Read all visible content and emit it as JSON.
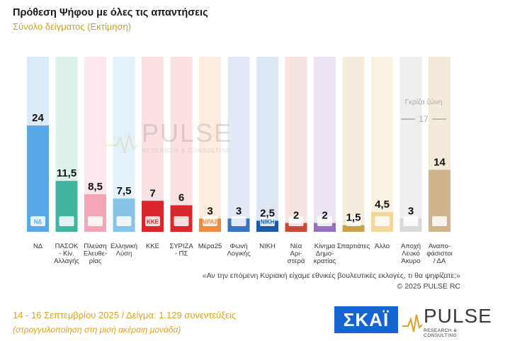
{
  "header": {
    "title": "Πρόθεση Ψήφου με όλες τις απαντήσεις",
    "subtitle": "Σύνολο δείγματος   (Εκτίμηση)"
  },
  "watermark": {
    "brand": "PULSE",
    "tagline": "RESEARCH & CONSULTING"
  },
  "gray_zone": {
    "label": "Γκρίζα ζώνη",
    "value": "17"
  },
  "chart_data": {
    "type": "bar",
    "title": "Πρόθεση Ψήφου με όλες τις απαντήσεις",
    "subtitle": "Σύνολο δείγματος   (Εκτίμηση)",
    "categories": [
      "ΝΔ",
      "ΠΑΣΟΚ - Κίν. Αλλαγής",
      "Πλεύση Ελευθερίας",
      "Ελληνική Λύση",
      "ΚΚΕ",
      "ΣΥΡΙΖΑ - ΠΣ",
      "Μέρα25",
      "Φωνή Λογικής",
      "ΝΙΚΗ",
      "Νέα Αριστερά",
      "Κίνημα Δημοκρατίας",
      "Σπαρτιάτες",
      "Άλλο",
      "Αποχή Λευκό Άκυρο",
      "Αναποφάσιστοι / ΔΑ"
    ],
    "category_lines": [
      [
        "ΝΔ"
      ],
      [
        "ΠΑΣΟΚ",
        "- Κίν.",
        "Αλλαγής"
      ],
      [
        "Πλεύση",
        "Ελευθε-",
        "ρίας"
      ],
      [
        "Ελληνική",
        "Λύση"
      ],
      [
        "ΚΚΕ"
      ],
      [
        "ΣΥΡΙΖΑ",
        "- ΠΣ"
      ],
      [
        "Μέρα25"
      ],
      [
        "Φωνή",
        "Λογικής"
      ],
      [
        "ΝΙΚΗ"
      ],
      [
        "Νέα",
        "Αρι-",
        "στερά"
      ],
      [
        "Κίνημα",
        "Δημο-",
        "κρατίας"
      ],
      [
        "Σπαρτιάτες"
      ],
      [
        "Άλλο"
      ],
      [
        "Αποχή",
        "Λευκό",
        "Άκυρο"
      ],
      [
        "Αναπο-",
        "φάσιστοι",
        "/ ΔΑ"
      ]
    ],
    "values": [
      24,
      11.5,
      8.5,
      7.5,
      7,
      6,
      3,
      3,
      2.5,
      2,
      2,
      1.5,
      4.5,
      3,
      14
    ],
    "value_labels": [
      "24",
      "11,5",
      "8,5",
      "7,5",
      "7",
      "6",
      "3",
      "3",
      "2,5",
      "2",
      "2",
      "1,5",
      "4,5",
      "3",
      "14"
    ],
    "bar_colors": [
      "#5aa9e6",
      "#3fb59e",
      "#f4a6b8",
      "#86c4e8",
      "#d8262c",
      "#d8262c",
      "#f08a3c",
      "#3a73c2",
      "#1f5aa8",
      "#c94a3a",
      "#9b6fbf",
      "#c9a24a",
      "#f1d89a",
      "#d9d9d9",
      "#d2b48c"
    ],
    "column_colors": [
      "#dcebfa",
      "#dcf1ec",
      "#fde6ec",
      "#e3f1fa",
      "#fbe1e2",
      "#fbe1e2",
      "#fdecdf",
      "#e1eaf6",
      "#dde6f3",
      "#f7e3e0",
      "#ece3f4",
      "#f4ecdd",
      "#fbf3e1",
      "#efefef",
      "#f3ead9"
    ],
    "party_logo_text": [
      "ΝΔ",
      "",
      "",
      "",
      "ΚΚΕ",
      "",
      "ΜέΡΑ25",
      "",
      "ΝΙΚΗ",
      "",
      "",
      "",
      "",
      "",
      ""
    ],
    "ylim": [
      0,
      24
    ],
    "xlabel": "",
    "ylabel": "",
    "grid": false,
    "legend": "none"
  },
  "footnote": {
    "question": "«Αν την επόμενη Κυριακή είχαμε εθνικές βουλευτικές εκλογές, τι θα ψηφίζατε;»",
    "copyright": "©  2025  PULSE RC"
  },
  "footer": {
    "info": "14 - 16 Σεπτεμβρίου 2025  /  Δείγμα:  1.129 συνεντεύξεις",
    "note": "(στρογγυλοποίηση στη μισή ακέραιη μονάδα)"
  },
  "logos": {
    "skai": "ΣΚΑΪ",
    "pulse": "PULSE",
    "pulse_tagline": "RESEARCH & CONSULTING"
  },
  "colors": {
    "accent": "#d4a017",
    "skai_blue": "#1464d2"
  }
}
